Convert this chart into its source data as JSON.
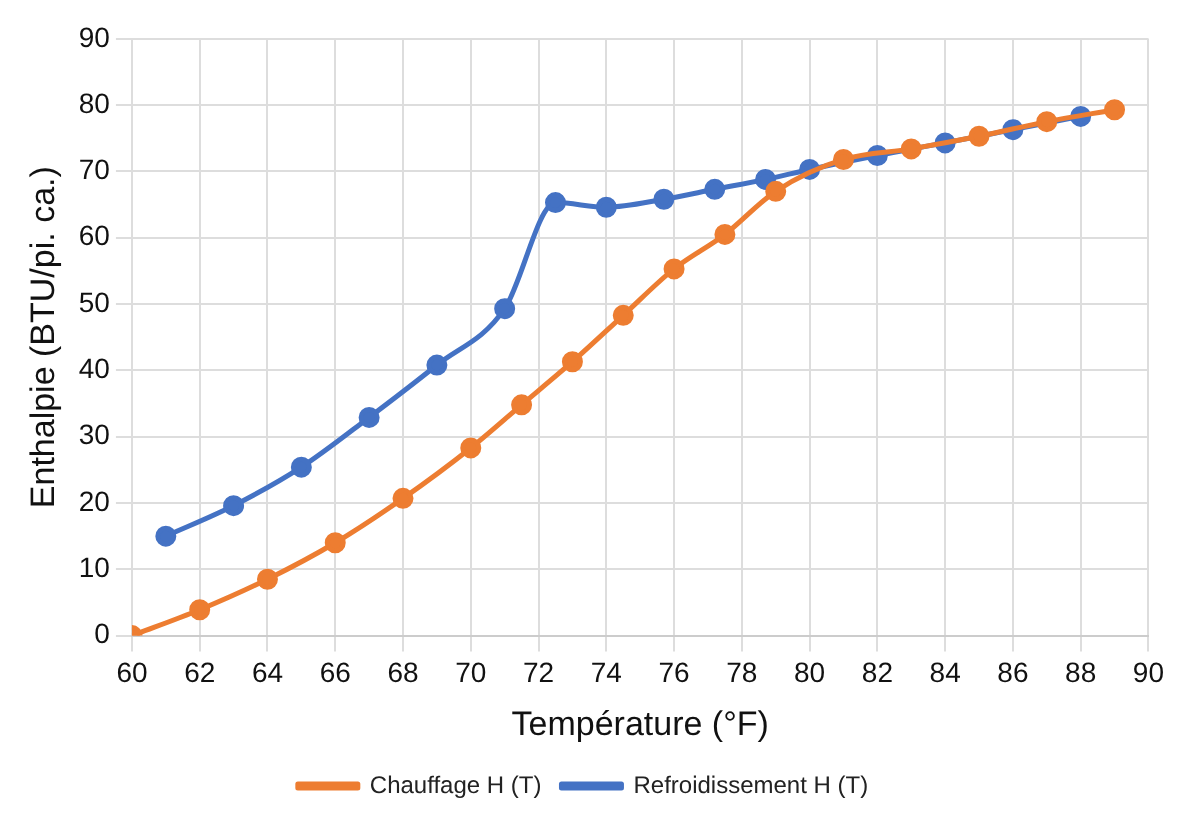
{
  "chart_data": {
    "type": "line",
    "xlabel": "Température (°F)",
    "ylabel": "Enthalpie (BTU/pi. ca.)",
    "xlim": [
      60,
      90
    ],
    "xticks": [
      60,
      62,
      64,
      66,
      68,
      70,
      72,
      74,
      76,
      78,
      80,
      82,
      84,
      86,
      88,
      90
    ],
    "ylim": [
      0,
      90
    ],
    "yticks": [
      0,
      10,
      20,
      30,
      40,
      50,
      60,
      70,
      80,
      90
    ],
    "grid": true,
    "legend": "bottom",
    "marker": "circle",
    "line_style": "solid",
    "series": [
      {
        "name": "Chauffage H (T)",
        "color": "#ed7d31",
        "x": [
          60,
          62,
          64,
          66,
          68,
          70,
          71.5,
          73,
          74.5,
          76,
          77.5,
          79,
          81,
          83,
          85,
          87,
          89
        ],
        "values": [
          0,
          3.9,
          8.5,
          14,
          20.7,
          28.3,
          34.8,
          41.3,
          48.3,
          55.3,
          60.5,
          67,
          71.8,
          73.4,
          75.3,
          77.5,
          79.3
        ]
      },
      {
        "name": "Refroidissement H (T)",
        "color": "#4472c4",
        "x": [
          61,
          63,
          65,
          67,
          69,
          71,
          72.5,
          74,
          75.7,
          77.2,
          78.7,
          80,
          82,
          84,
          86,
          88
        ],
        "values": [
          15,
          19.6,
          25.4,
          32.9,
          40.8,
          49.3,
          65.3,
          64.6,
          65.8,
          67.3,
          68.8,
          70.3,
          72.4,
          74.3,
          76.3,
          78.3
        ]
      }
    ]
  }
}
